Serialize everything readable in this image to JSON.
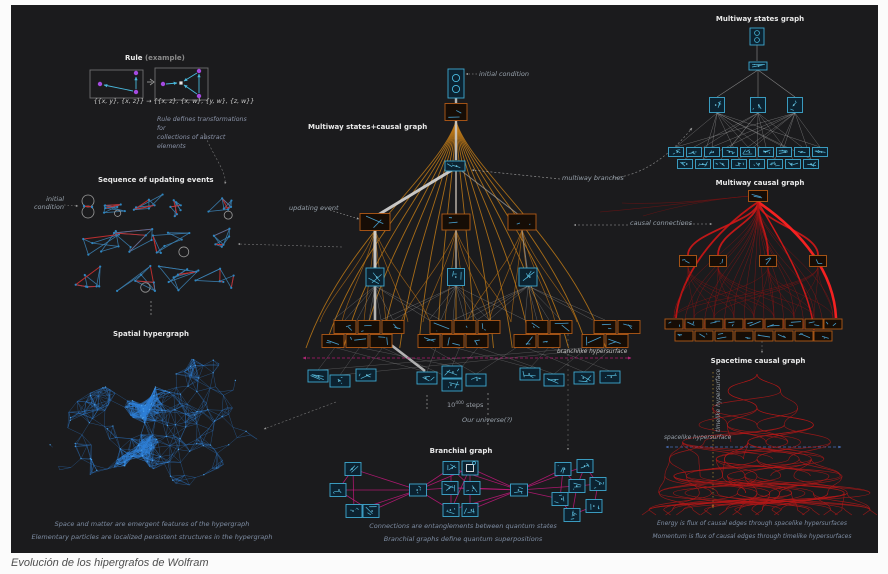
{
  "page": {
    "caption": "Evolución de los hipergrafos de Wolfram"
  },
  "colors": {
    "canvas_bg": "#1b1b1d",
    "page_bg": "#fbfbfb",
    "cyan": "#49b8dc",
    "cyan_box_border": "#3fa9d0",
    "cyan_box_fill": "#0c2230",
    "orange": "#c07a18",
    "orange_box_border": "#b25a17",
    "orange_box_fill": "#160d06",
    "red": "#d01818",
    "magenta": "#c2187b",
    "blue": "#2f80d8",
    "purple": "#a44ae0",
    "edge_gray": "#b9b9b9"
  },
  "rule": {
    "title_main": "Rule",
    "title_note": " (example)",
    "formula": "{{x, y}, {x, z}} → {{x, z}, {x, w}, {y, w}, {z, w}}",
    "note1": "Rule defines transformations for",
    "note2": "collections of abstract elements"
  },
  "sequence": {
    "title": "Sequence of updating events",
    "initial1": "initial",
    "initial2": "condition"
  },
  "spatial": {
    "title": "Spatial hypergraph",
    "cap1": "Space and matter are emergent features of the hypergraph",
    "cap2": "Elementary particles are localized persistent structures in the hypergraph"
  },
  "central": {
    "title": "Multiway states+causal graph",
    "initial_condition": "initial condition",
    "updating_event": "updating event",
    "multiway_branches": "multiway branches",
    "causal_connections": "causal connections",
    "branchlike": "branchlike hypersurface",
    "steps_base": "10",
    "steps_exp": "400",
    "steps_word": " steps",
    "universe": "Our universe(?)"
  },
  "branchial": {
    "title": "Branchial graph",
    "cap1": "Connections are entanglements between quantum states",
    "cap2": "Branchial graphs define quantum superpositions"
  },
  "mw_states": {
    "title": "Multiway states graph"
  },
  "mw_causal": {
    "title": "Multiway causal graph"
  },
  "spacetime": {
    "title": "Spacetime causal graph",
    "timelike": "timelike hypersurface",
    "spacelike": "spacelike hypersurface",
    "cap1": "Energy is flux of causal edges through spacelike hypersurfaces",
    "cap2": "Momentum is flux of causal edges through timelike hypersurfaces"
  }
}
